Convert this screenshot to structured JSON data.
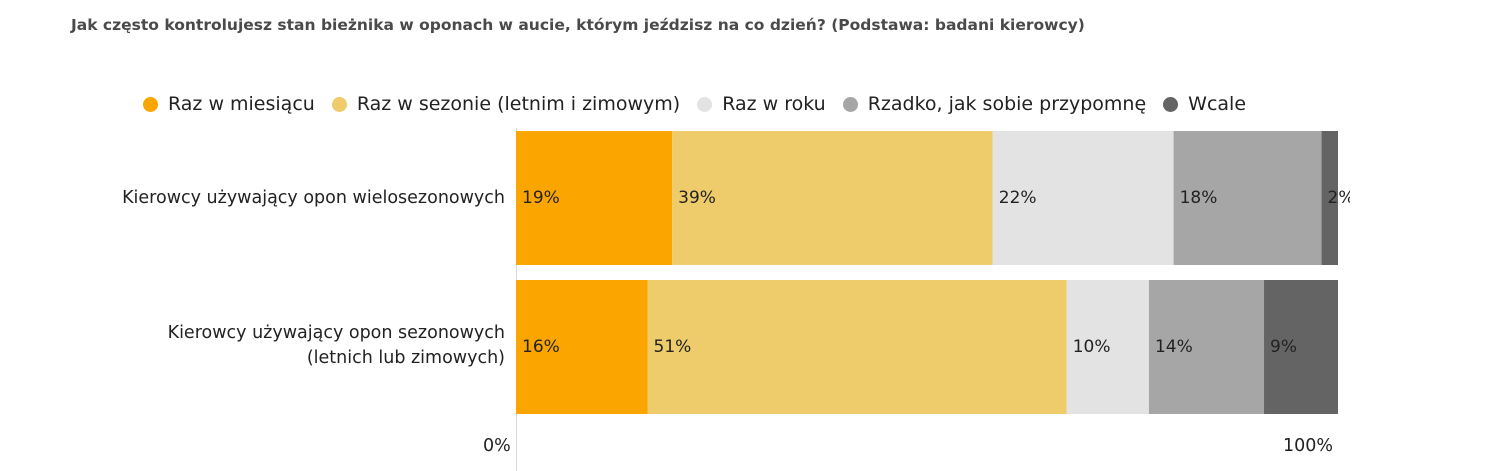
{
  "chart_data": {
    "type": "bar",
    "orientation": "horizontal",
    "stacked": true,
    "title": "Jak często kontrolujesz stan bieżnika w oponach w aucie, którym jeździsz na co dzień? (Podstawa: badani kierowcy)",
    "categories": [
      "Kierowcy używający opon wielosezonowych",
      "Kierowcy używający opon sezonowych (letnich lub zimowych)"
    ],
    "series": [
      {
        "name": "Raz w miesiącu",
        "color": "#fba600",
        "values": [
          19,
          16
        ],
        "labels": [
          "19%",
          "16%"
        ]
      },
      {
        "name": "Raz w sezonie (letnim i zimowym)",
        "color": "#eecb6b",
        "values": [
          39,
          51
        ],
        "labels": [
          "39%",
          "51%"
        ]
      },
      {
        "name": "Raz w roku",
        "color": "#e3e3e3",
        "values": [
          22,
          10
        ],
        "labels": [
          "22%",
          "10%"
        ]
      },
      {
        "name": "Rzadko, jak sobie przypomnę",
        "color": "#a6a6a6",
        "values": [
          18,
          14
        ],
        "labels": [
          "18%",
          "14%"
        ]
      },
      {
        "name": "Wcale",
        "color": "#646464",
        "values": [
          2,
          9
        ],
        "labels": [
          "2%",
          "9%"
        ]
      }
    ],
    "xlim": [
      0,
      100
    ],
    "x_ticks": [
      "0%",
      "100%"
    ],
    "legend_position": "top",
    "grid": false
  },
  "labels": {
    "category_lines": [
      [
        "Kierowcy używający opon wielosezonowych"
      ],
      [
        "Kierowcy używający opon sezonowych",
        "(letnich lub zimowych)"
      ]
    ]
  }
}
